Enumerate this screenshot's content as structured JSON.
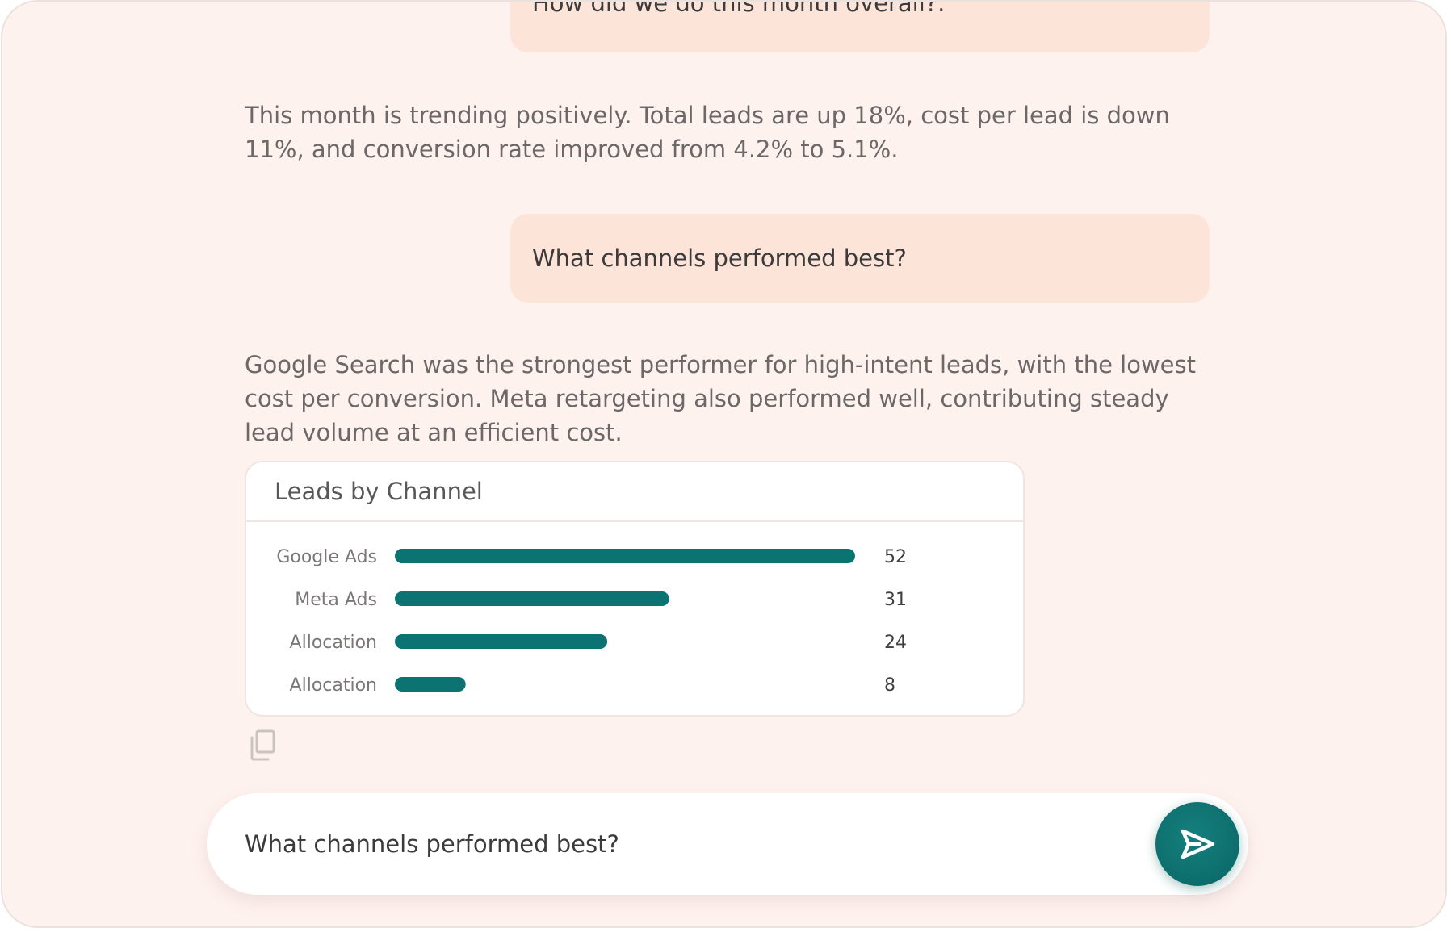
{
  "conversation": {
    "messages": [
      {
        "role": "user",
        "text": "How did we do this month overall?."
      },
      {
        "role": "assistant",
        "text": "This month is trending positively. Total leads are up 18%, cost per lead is down 11%, and conversion rate improved from 4.2% to 5.1%."
      },
      {
        "role": "user",
        "text": "What channels performed best?"
      },
      {
        "role": "assistant",
        "text": "Google Search was the strongest performer for high-intent leads, with the lowest cost per conversion. Meta retargeting also performed well, contributing steady lead volume at an efficient cost."
      }
    ]
  },
  "chart_data": {
    "type": "bar",
    "orientation": "horizontal",
    "title": "Leads by Channel",
    "categories": [
      "Google Ads",
      "Meta Ads",
      "Allocation",
      "Allocation"
    ],
    "values": [
      52,
      31,
      24,
      8
    ],
    "xlim": [
      0,
      52
    ],
    "grid": false,
    "legend": "none",
    "bar_color": "#0b7472"
  },
  "actions": {
    "copy_icon": "copy-icon"
  },
  "composer": {
    "value": "What channels performed best?",
    "send_icon": "send-icon",
    "accent_color": "#0c6e6c"
  }
}
